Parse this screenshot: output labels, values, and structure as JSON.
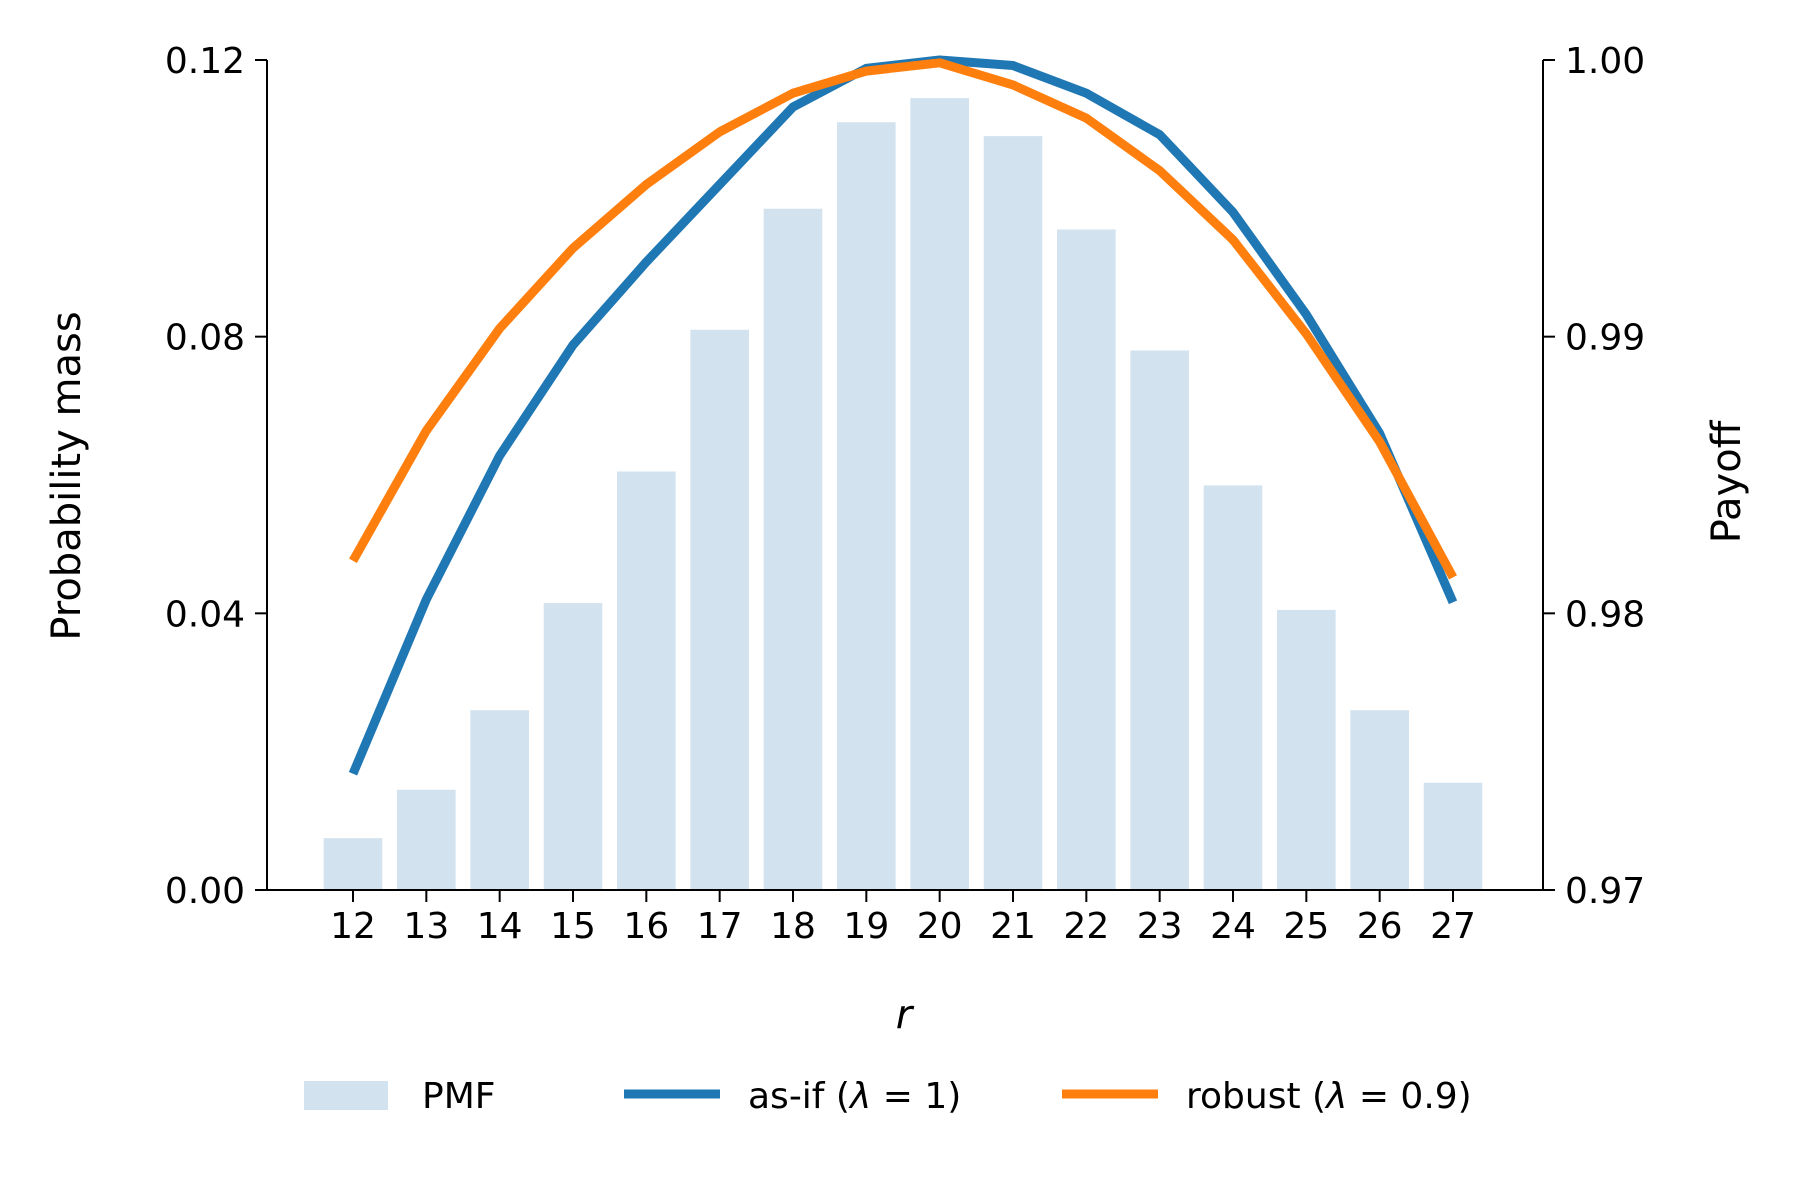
{
  "chart_data": {
    "type": "bar",
    "title": "",
    "xlabel": "r",
    "ylabel_left": "Probability mass",
    "ylabel_right": "Payoff",
    "categories": [
      "12",
      "13",
      "14",
      "15",
      "16",
      "17",
      "18",
      "19",
      "20",
      "21",
      "22",
      "23",
      "24",
      "25",
      "26",
      "27"
    ],
    "left_axis": {
      "ylim": [
        0,
        0.12
      ],
      "ticks": [
        0,
        0.04,
        0.08,
        0.12
      ],
      "tick_labels": [
        "0.00",
        "0.04",
        "0.08",
        "0.12"
      ]
    },
    "right_axis": {
      "ylim": [
        0.97,
        1.0
      ],
      "ticks": [
        0.97,
        0.98,
        0.99,
        1.0
      ],
      "tick_labels": [
        "0.97",
        "0.98",
        "0.99",
        "1.00"
      ]
    },
    "grid": false,
    "legend_position": "bottom",
    "series": [
      {
        "name": "PMF",
        "kind": "bar",
        "axis": "left",
        "color": "#d2e3ef",
        "values": [
          0.0075,
          0.0145,
          0.026,
          0.0415,
          0.0605,
          0.081,
          0.0985,
          0.111,
          0.1145,
          0.109,
          0.0955,
          0.078,
          0.0585,
          0.0405,
          0.026,
          0.0155
        ]
      },
      {
        "name_prefix": "as-if (",
        "name_symbol": "λ",
        "name_suffix": " = 1)",
        "kind": "line",
        "axis": "right",
        "color": "#1f77b4",
        "values": [
          0.9742,
          0.9805,
          0.9857,
          0.9897,
          0.9927,
          0.9955,
          0.9983,
          0.9997,
          1.0,
          0.9998,
          0.9988,
          0.9973,
          0.9945,
          0.9908,
          0.9865,
          0.9804
        ]
      },
      {
        "name_prefix": "robust (",
        "name_symbol": "λ",
        "name_suffix": " = 0.9)",
        "kind": "line",
        "axis": "right",
        "color": "#ff7f0e",
        "values": [
          0.9819,
          0.9866,
          0.9903,
          0.9932,
          0.9955,
          0.9974,
          0.9988,
          0.9996,
          0.9999,
          0.9991,
          0.9979,
          0.996,
          0.9935,
          0.9901,
          0.9862,
          0.9813
        ]
      }
    ]
  }
}
